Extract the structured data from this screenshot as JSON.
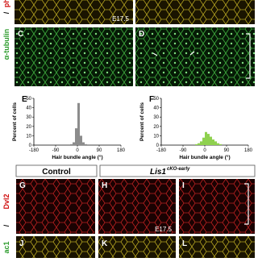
{
  "top": {
    "stage": "E17.5",
    "marker_green": "α-tubulin",
    "separator": "/",
    "marker_red": "phalloidin"
  },
  "panels": {
    "C": "C",
    "D": "D",
    "G": "G",
    "H": "H",
    "I": "I",
    "J": "J",
    "K": "K",
    "L": "L"
  },
  "bottom": {
    "stage": "E17.5",
    "marker_green": "ac1",
    "separator": "/",
    "marker_red": "Dvl2"
  },
  "groups": {
    "control": "Control",
    "gene": "Lis1",
    "allele": "cKO-early"
  },
  "chart_data": [
    {
      "type": "histogram",
      "panel": "E",
      "ylabel": "Percent of cells",
      "xlabel": "Hair bundle angle (°)",
      "color": "#8c8c8c",
      "bins": [
        -180,
        -170,
        -160,
        -150,
        -140,
        -130,
        -120,
        -110,
        -100,
        -90,
        -80,
        -70,
        -60,
        -50,
        -40,
        -30,
        -20,
        -10,
        0,
        10,
        20,
        30,
        40,
        50,
        60,
        70,
        80,
        90,
        100,
        110,
        120,
        130,
        140,
        150,
        160,
        170,
        180
      ],
      "values": [
        0,
        0,
        0,
        0,
        0,
        0,
        0,
        0,
        0,
        0,
        0,
        0,
        0,
        0,
        0,
        1,
        3,
        18,
        45,
        10,
        3,
        1,
        0,
        0,
        0,
        0,
        0,
        0,
        0,
        0,
        0,
        0,
        0,
        0,
        0,
        0
      ],
      "xlim": [
        -180,
        180
      ],
      "xticks": [
        -180,
        -90,
        0,
        90,
        180
      ],
      "ylim": [
        0,
        50
      ],
      "yticks": [
        0,
        10,
        20,
        30,
        40,
        50
      ]
    },
    {
      "type": "histogram",
      "panel": "F",
      "ylabel": "Percent of cells",
      "xlabel": "Hair bundle angle (°)",
      "color": "#8fd14f",
      "bins": [
        -180,
        -170,
        -160,
        -150,
        -140,
        -130,
        -120,
        -110,
        -100,
        -90,
        -80,
        -70,
        -60,
        -50,
        -40,
        -30,
        -20,
        -10,
        0,
        10,
        20,
        30,
        40,
        50,
        60,
        70,
        80,
        90,
        100,
        110,
        120,
        130,
        140,
        150,
        160,
        170,
        180
      ],
      "values": [
        0,
        0,
        0,
        0,
        0,
        0,
        0,
        0,
        0,
        0,
        0,
        0,
        0,
        0,
        1,
        2,
        4,
        8,
        14,
        12,
        9,
        6,
        4,
        2,
        1,
        0,
        0,
        0,
        0,
        0,
        0,
        0,
        0,
        0,
        0,
        0
      ],
      "xlim": [
        -180,
        180
      ],
      "xticks": [
        -180,
        -90,
        0,
        90,
        180
      ],
      "ylim": [
        0,
        50
      ],
      "yticks": [
        0,
        10,
        20,
        30,
        40,
        50
      ]
    }
  ]
}
